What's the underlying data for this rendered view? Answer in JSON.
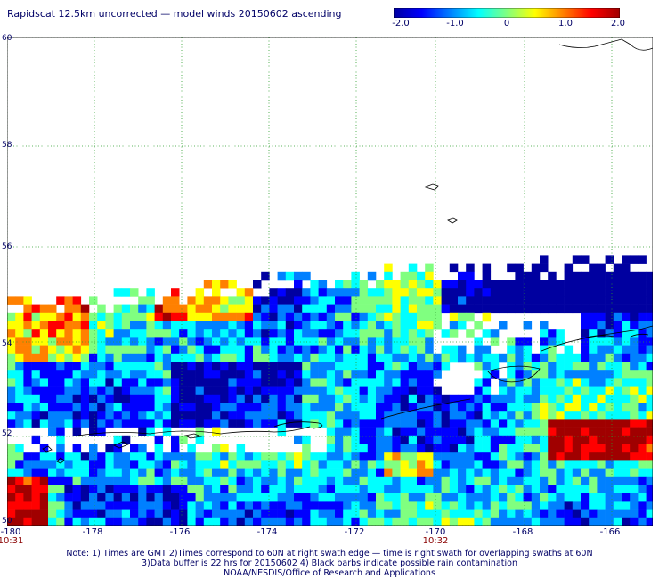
{
  "title": "Rapidscat 12.5km uncorrected — model winds 20150602 ascending",
  "colorbar": {
    "labels": [
      "-2.0",
      "-1.0",
      "0",
      "1.0",
      "2.0"
    ],
    "values": [
      -2.0,
      -1.0,
      0,
      1.0,
      2.0
    ],
    "colors": [
      "#0000a0",
      "#0000ff",
      "#0080ff",
      "#00ffff",
      "#80ff80",
      "#ffff00",
      "#ff8000",
      "#ff0000",
      "#a00000"
    ]
  },
  "map": {
    "lat_labels": [
      "50",
      "52",
      "54",
      "56",
      "58",
      "60"
    ],
    "lon_labels": [
      "-180",
      "-178",
      "-176",
      "-174",
      "-172",
      "-170",
      "-168",
      "-166"
    ],
    "lat_range": [
      50,
      60
    ],
    "lon_range": [
      -180,
      -165.2
    ],
    "grid": "dotted"
  },
  "times": [
    {
      "label": "10:31",
      "lon": -180
    },
    {
      "label": "10:32",
      "lon": -170
    }
  ],
  "notes": [
    "Note: 1) Times are GMT 2)Times correspond to 60N at right swath edge — time is right swath for overlapping swaths at 60N",
    "3)Data buffer is 22 hrs for 20150602 4) Black barbs indicate possible rain contamination",
    "NOAA/NESDIS/Office of Research and Applications"
  ]
}
